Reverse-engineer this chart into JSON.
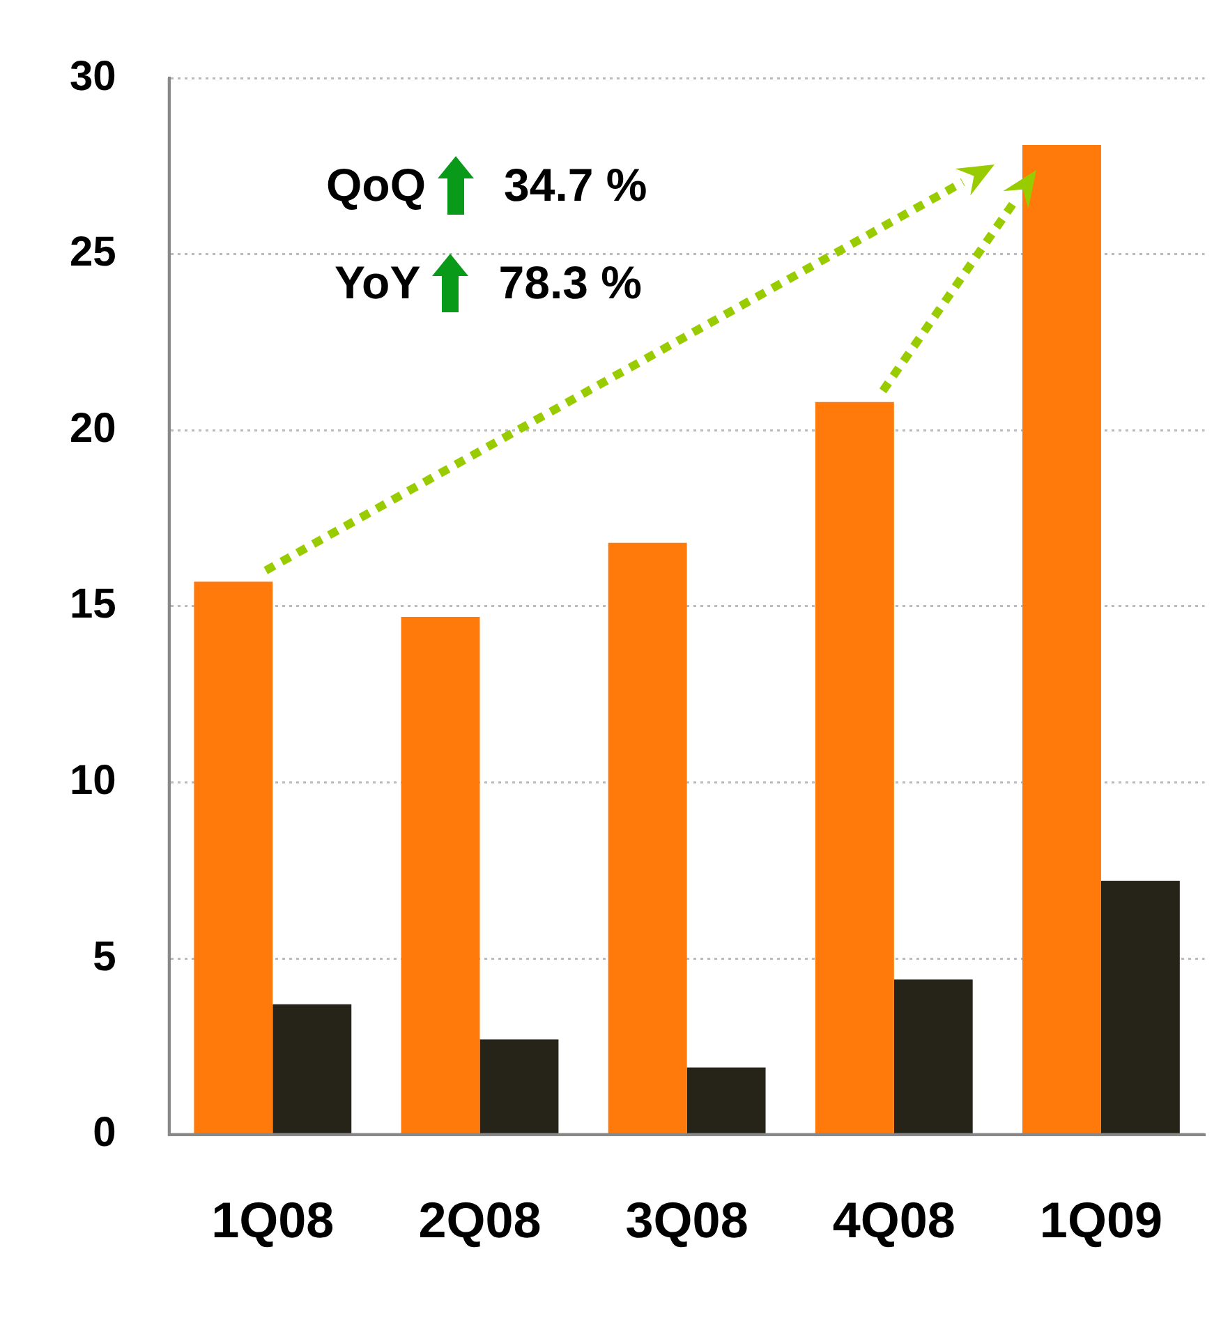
{
  "chart_data": {
    "type": "bar",
    "categories": [
      "1Q08",
      "2Q08",
      "3Q08",
      "4Q08",
      "1Q09"
    ],
    "series": [
      {
        "color": "#ff7a0a",
        "values": [
          15.7,
          14.7,
          16.8,
          20.8,
          28.1
        ]
      },
      {
        "color": "#262318",
        "values": [
          3.7,
          2.7,
          1.9,
          4.4,
          7.2
        ]
      }
    ],
    "ylim": [
      0,
      30
    ],
    "yticks": [
      0,
      5,
      10,
      15,
      20,
      25,
      30
    ],
    "grid": "y",
    "legend": false,
    "annotations": [
      "QoQ 34.7 %",
      "YoY 78.3 %"
    ]
  }
}
